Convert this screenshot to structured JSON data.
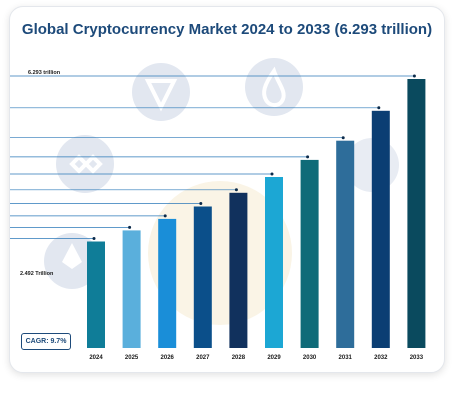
{
  "chart_data": {
    "type": "bar",
    "title": "Global Cryptocurrency Market 2024 to 2033 (6.293 trillion)",
    "xlabel": "",
    "ylabel": "",
    "categories": [
      "2024",
      "2025",
      "2026",
      "2027",
      "2028",
      "2029",
      "2030",
      "2031",
      "2032",
      "2033"
    ],
    "values": [
      2.492,
      2.75,
      3.02,
      3.31,
      3.63,
      4.0,
      4.4,
      4.85,
      5.55,
      6.293
    ],
    "ylim": [
      0,
      6.293
    ],
    "value_labels": {
      "first": "2.492 Trillion",
      "last": "6.293 trillion"
    },
    "bar_colors": [
      "#0f7d98",
      "#5aafdc",
      "#1a8ed8",
      "#0b4f8a",
      "#11315d",
      "#1ca7d4",
      "#0f6b78",
      "#2e6d9a",
      "#0b3e73",
      "#0a4a5e"
    ],
    "grid": false,
    "legend": "none"
  },
  "cagr_label": "CAGR: 9.7%",
  "colors": {
    "title": "#1d4a7a",
    "leader_line": "#2b78b8",
    "background_icons": "#dde3ee",
    "watermark": "#f7eed9"
  }
}
